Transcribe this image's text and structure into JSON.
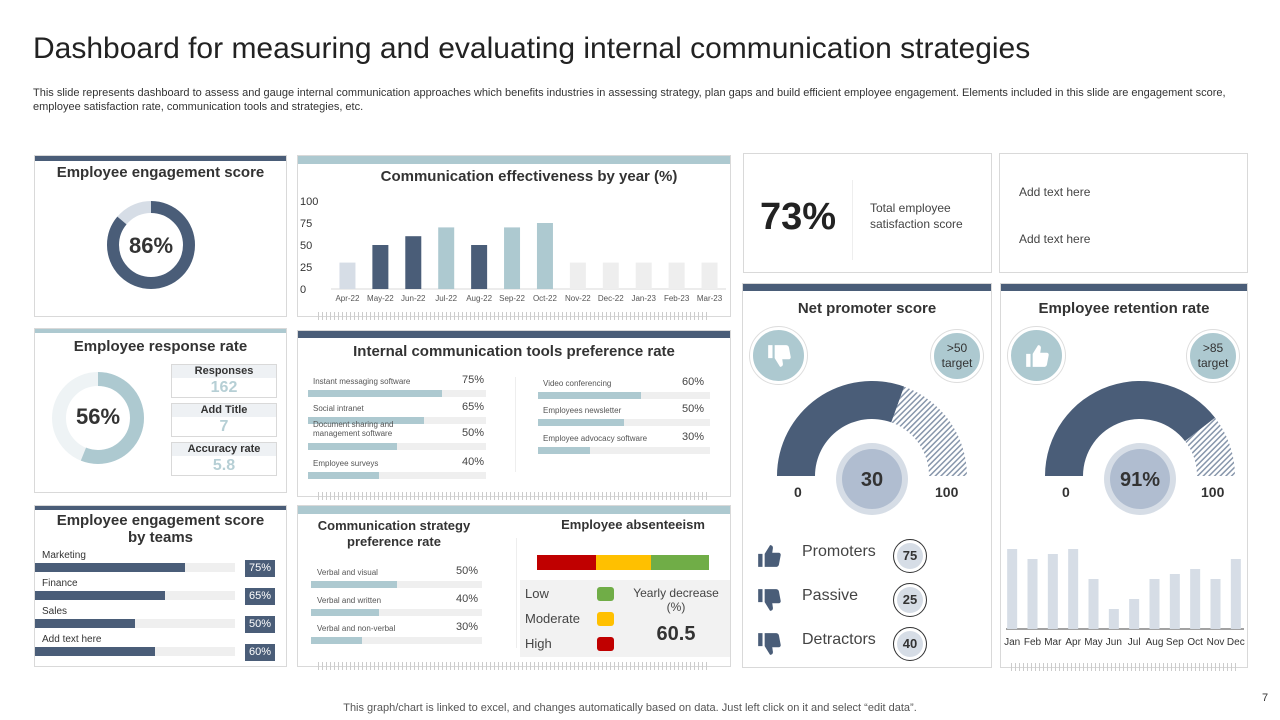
{
  "header": {
    "title": "Dashboard for measuring and evaluating internal communication strategies",
    "description": "This slide represents dashboard to assess and gauge internal communication approaches which benefits industries in assessing strategy, plan gaps and build efficient employee engagement. Elements included in this slide are engagement score, employee satisfaction rate, communication tools and strategies, etc."
  },
  "colors": {
    "dark": "#4a5d78",
    "light": "#adc9d0",
    "pale": "#d6dde6",
    "track": "#efefef",
    "red": "#c00000",
    "amber": "#ffc000",
    "green": "#70ad47"
  },
  "engagement": {
    "title": "Employee engagement score",
    "value": "86%",
    "fraction": 0.86
  },
  "effectiveness": {
    "title": "Communication effectiveness by year (%)",
    "chart_data": {
      "type": "bar",
      "title": "Communication effectiveness by year (%)",
      "categories": [
        "Apr-22",
        "May-22",
        "Jun-22",
        "Jul-22",
        "Aug-22",
        "Sep-22",
        "Oct-22",
        "Nov-22",
        "Dec-22",
        "Jan-23",
        "Feb-23",
        "Mar-23"
      ],
      "values": [
        30,
        50,
        60,
        70,
        50,
        70,
        75,
        30,
        30,
        30,
        30,
        30
      ],
      "bar_colors": [
        "#d6dde6",
        "#4a5d78",
        "#4a5d78",
        "#adc9d0",
        "#4a5d78",
        "#adc9d0",
        "#adc9d0",
        "#eeeeee",
        "#eeeeee",
        "#eeeeee",
        "#eeeeee",
        "#eeeeee"
      ],
      "yticks": [
        "0",
        "25",
        "50",
        "75",
        "100"
      ],
      "ylim": [
        0,
        100
      ],
      "grid": false
    }
  },
  "satisfaction": {
    "value": "73%",
    "label": "Total employee satisfaction score"
  },
  "notes": {
    "line1": "Add text here",
    "line2": "Add text here"
  },
  "response": {
    "title": "Employee response rate",
    "value": "56%",
    "fraction": 0.56,
    "stats": [
      {
        "label": "Responses",
        "value": "162"
      },
      {
        "label": "Add Title",
        "value": "7"
      },
      {
        "label": "Accuracy rate",
        "value": "5.8"
      }
    ]
  },
  "tools": {
    "title": "Internal communication tools preference rate",
    "left": [
      {
        "label": "Instant messaging software",
        "value": "75%",
        "fraction": 0.75
      },
      {
        "label": "Social intranet",
        "value": "65%",
        "fraction": 0.65
      },
      {
        "label": "Document sharing and management software",
        "value": "50%",
        "fraction": 0.5
      },
      {
        "label": "Employee surveys",
        "value": "40%",
        "fraction": 0.4
      }
    ],
    "right": [
      {
        "label": "Video conferencing",
        "value": "60%",
        "fraction": 0.6
      },
      {
        "label": "Employees newsletter",
        "value": "50%",
        "fraction": 0.5
      },
      {
        "label": "Employee advocacy software",
        "value": "30%",
        "fraction": 0.3
      }
    ]
  },
  "teams": {
    "title": "Employee engagement score by teams",
    "items": [
      {
        "label": "Marketing",
        "value": "75%",
        "fraction": 0.75
      },
      {
        "label": "Finance",
        "value": "65%",
        "fraction": 0.65
      },
      {
        "label": "Sales",
        "value": "50%",
        "fraction": 0.5
      },
      {
        "label": "Add text here",
        "value": "60%",
        "fraction": 0.6
      }
    ]
  },
  "strategy": {
    "title": "Communication strategy preference rate",
    "items": [
      {
        "label": "Verbal and visual",
        "value": "50%",
        "fraction": 0.5
      },
      {
        "label": "Verbal and written",
        "value": "40%",
        "fraction": 0.4
      },
      {
        "label": "Verbal and non-verbal",
        "value": "30%",
        "fraction": 0.3
      }
    ]
  },
  "absenteeism": {
    "title": "Employee absenteeism",
    "legend": [
      {
        "label": "Low",
        "color": "#70ad47"
      },
      {
        "label": "Moderate",
        "color": "#ffc000"
      },
      {
        "label": "High",
        "color": "#c00000"
      }
    ],
    "decrease_label": "Yearly decrease (%)",
    "decrease_value": "60.5"
  },
  "nps": {
    "title": "Net promoter score",
    "icon": "thumbs-down-icon",
    "target": ">50",
    "target_label": "target",
    "value": "30",
    "gauge_fill": 0.61,
    "min": "0",
    "max": "100",
    "rows": [
      {
        "label": "Promoters",
        "value": "75",
        "icon": "thumbs-up-icon"
      },
      {
        "label": "Passive",
        "value": "25",
        "icon": "thumbs-down-icon"
      },
      {
        "label": "Detractors",
        "value": "40",
        "icon": "thumbs-down-icon"
      }
    ]
  },
  "retention": {
    "title": "Employee retention rate",
    "icon": "thumbs-up-icon",
    "target": ">85",
    "target_label": "target",
    "value": "91%",
    "gauge_fill": 0.79,
    "min": "0",
    "max": "100",
    "chart_data": {
      "type": "bar",
      "categories": [
        "Jan",
        "Feb",
        "Mar",
        "Apr",
        "May",
        "Jun",
        "Jul",
        "Aug",
        "Sep",
        "Oct",
        "Nov",
        "Dec"
      ],
      "values": [
        80,
        70,
        75,
        80,
        50,
        20,
        30,
        50,
        55,
        60,
        50,
        70
      ],
      "grid": false
    }
  },
  "footer": {
    "note": "This graph/chart is linked to excel,  and changes automatically based on data. Just left click on it and select “edit data”.",
    "page": "7"
  }
}
